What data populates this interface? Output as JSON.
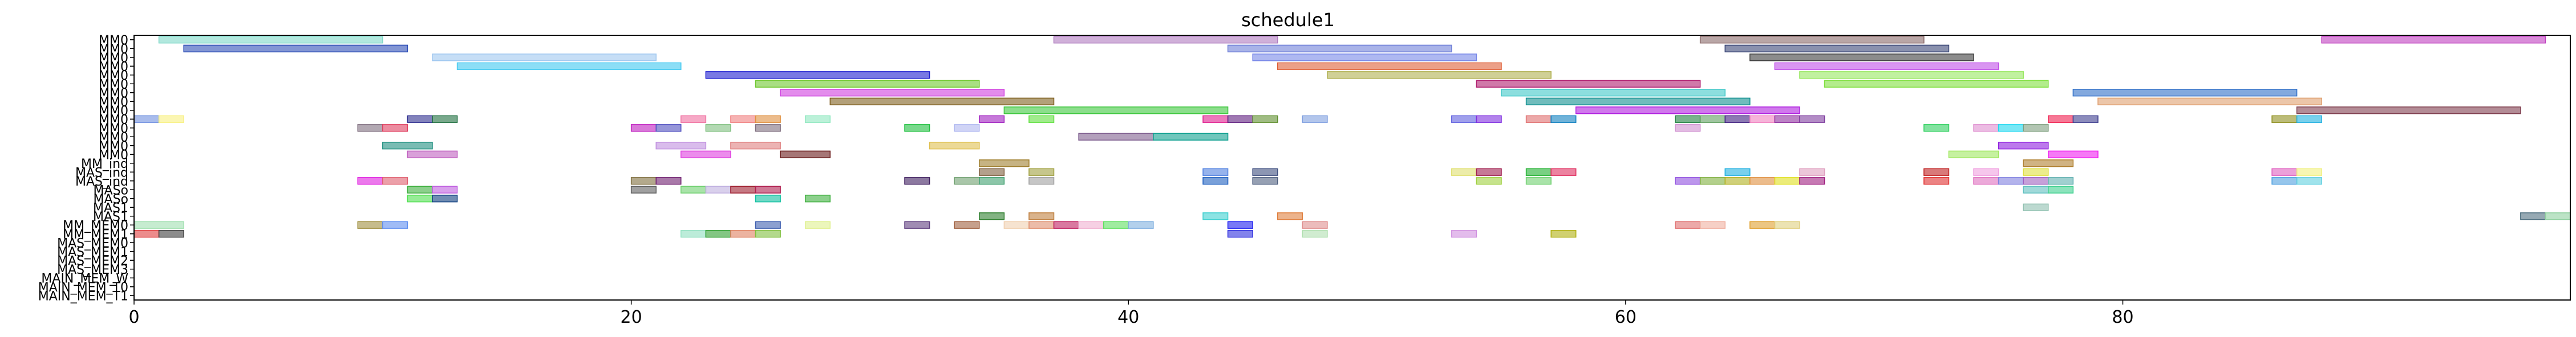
{
  "chart_data": {
    "type": "gantt",
    "title": "schedule1",
    "xlabel": "",
    "ylabel": "",
    "xlim": [
      0,
      98
    ],
    "xticks": [
      0,
      20,
      40,
      60,
      80
    ],
    "grid": false,
    "legend": "none",
    "rows": [
      "MM0",
      "MM0",
      "MM0",
      "MM0",
      "MM0",
      "MM0",
      "MM0",
      "MM0",
      "MM0",
      "MM0",
      "MM0",
      "MM0",
      "MM0",
      "MM0",
      "MM_ind",
      "MAS_ind",
      "MAS_ind",
      "MASo",
      "MASo",
      "MAS1",
      "MAS1",
      "MM_MEM0",
      "MM_MEM1",
      "MAS_MEM0",
      "MAS_MEM1",
      "MAS_MEM2",
      "MAS_MEM3",
      "MAIN_MEM_W",
      "MAIN_MEM_T0",
      "MAIN_MEM_T1"
    ],
    "bars": [
      {
        "row": 0,
        "start": 1,
        "end": 10,
        "color": "#7fd8c8"
      },
      {
        "row": 0,
        "start": 37,
        "end": 46,
        "color": "#b07cc0"
      },
      {
        "row": 0,
        "start": 63,
        "end": 72,
        "color": "#8b6a6a"
      },
      {
        "row": 0,
        "start": 88,
        "end": 97,
        "color": "#c040c0"
      },
      {
        "row": 1,
        "start": 2,
        "end": 11,
        "color": "#3050b8"
      },
      {
        "row": 1,
        "start": 44,
        "end": 53,
        "color": "#7080d8"
      },
      {
        "row": 1,
        "start": 64,
        "end": 73,
        "color": "#3c4878"
      },
      {
        "row": 2,
        "start": 12,
        "end": 21,
        "color": "#a0c8f0"
      },
      {
        "row": 2,
        "start": 45,
        "end": 54,
        "color": "#7888e8"
      },
      {
        "row": 2,
        "start": 65,
        "end": 74,
        "color": "#404040"
      },
      {
        "row": 3,
        "start": 13,
        "end": 22,
        "color": "#40c8f0"
      },
      {
        "row": 3,
        "start": 46,
        "end": 55,
        "color": "#e06038"
      },
      {
        "row": 3,
        "start": 66,
        "end": 75,
        "color": "#c050e8"
      },
      {
        "row": 4,
        "start": 23,
        "end": 32,
        "color": "#2020d0"
      },
      {
        "row": 4,
        "start": 48,
        "end": 57,
        "color": "#b0b050"
      },
      {
        "row": 4,
        "start": 67,
        "end": 76,
        "color": "#98e860"
      },
      {
        "row": 5,
        "start": 25,
        "end": 34,
        "color": "#70c830"
      },
      {
        "row": 5,
        "start": 54,
        "end": 63,
        "color": "#b02070"
      },
      {
        "row": 5,
        "start": 68,
        "end": 77,
        "color": "#80e040"
      },
      {
        "row": 6,
        "start": 26,
        "end": 35,
        "color": "#d040e0"
      },
      {
        "row": 6,
        "start": 55,
        "end": 64,
        "color": "#40c8c8"
      },
      {
        "row": 6,
        "start": 78,
        "end": 87,
        "color": "#3070c8"
      },
      {
        "row": 7,
        "start": 28,
        "end": 37,
        "color": "#806020"
      },
      {
        "row": 7,
        "start": 56,
        "end": 65,
        "color": "#109090"
      },
      {
        "row": 7,
        "start": 79,
        "end": 88,
        "color": "#e0a070"
      },
      {
        "row": 8,
        "start": 35,
        "end": 44,
        "color": "#40c840"
      },
      {
        "row": 8,
        "start": 58,
        "end": 67,
        "color": "#b020e0"
      },
      {
        "row": 8,
        "start": 87,
        "end": 96,
        "color": "#804050"
      },
      {
        "row": 9,
        "start": 0,
        "end": 1,
        "color": "#7090e0"
      },
      {
        "row": 9,
        "start": 1,
        "end": 2,
        "color": "#f8f080"
      },
      {
        "row": 9,
        "start": 11,
        "end": 12,
        "color": "#303090"
      },
      {
        "row": 9,
        "start": 12,
        "end": 13,
        "color": "#207040"
      },
      {
        "row": 9,
        "start": 22,
        "end": 23,
        "color": "#f070a0"
      },
      {
        "row": 9,
        "start": 24,
        "end": 25,
        "color": "#f08080"
      },
      {
        "row": 9,
        "start": 25,
        "end": 26,
        "color": "#e09040"
      },
      {
        "row": 9,
        "start": 27,
        "end": 28,
        "color": "#90e8c0"
      },
      {
        "row": 9,
        "start": 34,
        "end": 35,
        "color": "#a020c0"
      },
      {
        "row": 9,
        "start": 36,
        "end": 37,
        "color": "#60e040"
      },
      {
        "row": 9,
        "start": 43,
        "end": 44,
        "color": "#e02090"
      },
      {
        "row": 9,
        "start": 44,
        "end": 45,
        "color": "#602080"
      },
      {
        "row": 9,
        "start": 45,
        "end": 46,
        "color": "#609030"
      },
      {
        "row": 9,
        "start": 47,
        "end": 48,
        "color": "#80a0e0"
      },
      {
        "row": 9,
        "start": 53,
        "end": 54,
        "color": "#6060e0"
      },
      {
        "row": 9,
        "start": 54,
        "end": 55,
        "color": "#8030e0"
      },
      {
        "row": 9,
        "start": 56,
        "end": 57,
        "color": "#e07070"
      },
      {
        "row": 9,
        "start": 57,
        "end": 58,
        "color": "#1080c0"
      },
      {
        "row": 9,
        "start": 62,
        "end": 63,
        "color": "#208040"
      },
      {
        "row": 9,
        "start": 63,
        "end": 64,
        "color": "#60a060"
      },
      {
        "row": 9,
        "start": 64,
        "end": 65,
        "color": "#402080"
      },
      {
        "row": 9,
        "start": 65,
        "end": 66,
        "color": "#f080c0"
      },
      {
        "row": 9,
        "start": 66,
        "end": 67,
        "color": "#9030a0"
      },
      {
        "row": 9,
        "start": 67,
        "end": 68,
        "color": "#8040a0"
      },
      {
        "row": 9,
        "start": 77,
        "end": 78,
        "color": "#f02050"
      },
      {
        "row": 9,
        "start": 78,
        "end": 79,
        "color": "#404090"
      },
      {
        "row": 9,
        "start": 86,
        "end": 87,
        "color": "#909020"
      },
      {
        "row": 9,
        "start": 87,
        "end": 88,
        "color": "#20b0e0"
      },
      {
        "row": 10,
        "start": 9,
        "end": 10,
        "color": "#807080"
      },
      {
        "row": 10,
        "start": 10,
        "end": 11,
        "color": "#e04060"
      },
      {
        "row": 10,
        "start": 20,
        "end": 21,
        "color": "#c020c0"
      },
      {
        "row": 10,
        "start": 21,
        "end": 22,
        "color": "#5050c0"
      },
      {
        "row": 10,
        "start": 23,
        "end": 24,
        "color": "#80c080"
      },
      {
        "row": 10,
        "start": 25,
        "end": 26,
        "color": "#807080"
      },
      {
        "row": 10,
        "start": 31,
        "end": 32,
        "color": "#20c040"
      },
      {
        "row": 10,
        "start": 33,
        "end": 34,
        "color": "#b0b8f0"
      },
      {
        "row": 10,
        "start": 62,
        "end": 63,
        "color": "#d090d0"
      },
      {
        "row": 10,
        "start": 72,
        "end": 73,
        "color": "#30d060"
      },
      {
        "row": 10,
        "start": 74,
        "end": 75,
        "color": "#e090d0"
      },
      {
        "row": 10,
        "start": 75,
        "end": 76,
        "color": "#20d8f0"
      },
      {
        "row": 10,
        "start": 76,
        "end": 77,
        "color": "#80a080"
      },
      {
        "row": 11,
        "start": 38,
        "end": 41,
        "color": "#806090"
      },
      {
        "row": 11,
        "start": 41,
        "end": 44,
        "color": "#10a090"
      },
      {
        "row": 12,
        "start": 10,
        "end": 12,
        "color": "#209080"
      },
      {
        "row": 12,
        "start": 21,
        "end": 23,
        "color": "#c090e0"
      },
      {
        "row": 12,
        "start": 24,
        "end": 26,
        "color": "#e08080"
      },
      {
        "row": 12,
        "start": 32,
        "end": 34,
        "color": "#e0c050"
      },
      {
        "row": 12,
        "start": 75,
        "end": 77,
        "color": "#9020e0"
      },
      {
        "row": 13,
        "start": 11,
        "end": 13,
        "color": "#c060c0"
      },
      {
        "row": 13,
        "start": 22,
        "end": 24,
        "color": "#e040e0"
      },
      {
        "row": 13,
        "start": 26,
        "end": 28,
        "color": "#6a1a1a"
      },
      {
        "row": 13,
        "start": 73,
        "end": 75,
        "color": "#a0e860"
      },
      {
        "row": 13,
        "start": 77,
        "end": 79,
        "color": "#f020f0"
      },
      {
        "row": 14,
        "start": 34,
        "end": 36,
        "color": "#a08030"
      },
      {
        "row": 14,
        "start": 76,
        "end": 78,
        "color": "#b08030"
      },
      {
        "row": 15,
        "start": 34,
        "end": 35,
        "color": "#806040"
      },
      {
        "row": 15,
        "start": 36,
        "end": 37,
        "color": "#a0a040"
      },
      {
        "row": 15,
        "start": 43,
        "end": 44,
        "color": "#5080e0"
      },
      {
        "row": 15,
        "start": 45,
        "end": 46,
        "color": "#405080"
      },
      {
        "row": 15,
        "start": 53,
        "end": 54,
        "color": "#e0e070"
      },
      {
        "row": 15,
        "start": 54,
        "end": 55,
        "color": "#a02050"
      },
      {
        "row": 15,
        "start": 56,
        "end": 57,
        "color": "#20b030"
      },
      {
        "row": 15,
        "start": 57,
        "end": 58,
        "color": "#e03060"
      },
      {
        "row": 15,
        "start": 64,
        "end": 65,
        "color": "#20b0e0"
      },
      {
        "row": 15,
        "start": 67,
        "end": 68,
        "color": "#e0a0c0"
      },
      {
        "row": 15,
        "start": 72,
        "end": 73,
        "color": "#c02020"
      },
      {
        "row": 15,
        "start": 74,
        "end": 75,
        "color": "#f0a0e0"
      },
      {
        "row": 15,
        "start": 76,
        "end": 77,
        "color": "#e0e040"
      },
      {
        "row": 15,
        "start": 86,
        "end": 87,
        "color": "#e060c0"
      },
      {
        "row": 15,
        "start": 87,
        "end": 88,
        "color": "#f0f080"
      },
      {
        "row": 16,
        "start": 9,
        "end": 10,
        "color": "#e020e0"
      },
      {
        "row": 16,
        "start": 10,
        "end": 11,
        "color": "#e06070"
      },
      {
        "row": 16,
        "start": 20,
        "end": 21,
        "color": "#807040"
      },
      {
        "row": 16,
        "start": 21,
        "end": 22,
        "color": "#702070"
      },
      {
        "row": 16,
        "start": 31,
        "end": 32,
        "color": "#402060"
      },
      {
        "row": 16,
        "start": 33,
        "end": 34,
        "color": "#70a070"
      },
      {
        "row": 16,
        "start": 34,
        "end": 35,
        "color": "#40a070"
      },
      {
        "row": 16,
        "start": 36,
        "end": 37,
        "color": "#a0a0a0"
      },
      {
        "row": 16,
        "start": 43,
        "end": 44,
        "color": "#2060c0"
      },
      {
        "row": 16,
        "start": 45,
        "end": 46,
        "color": "#506080"
      },
      {
        "row": 16,
        "start": 54,
        "end": 55,
        "color": "#a0d040"
      },
      {
        "row": 16,
        "start": 56,
        "end": 57,
        "color": "#70d070"
      },
      {
        "row": 16,
        "start": 62,
        "end": 63,
        "color": "#9050e0"
      },
      {
        "row": 16,
        "start": 63,
        "end": 64,
        "color": "#80b040"
      },
      {
        "row": 16,
        "start": 64,
        "end": 65,
        "color": "#b0b020"
      },
      {
        "row": 16,
        "start": 65,
        "end": 66,
        "color": "#e09040"
      },
      {
        "row": 16,
        "start": 66,
        "end": 67,
        "color": "#e0e020"
      },
      {
        "row": 16,
        "start": 67,
        "end": 68,
        "color": "#a02080"
      },
      {
        "row": 16,
        "start": 72,
        "end": 73,
        "color": "#e03030"
      },
      {
        "row": 16,
        "start": 74,
        "end": 75,
        "color": "#e070c0"
      },
      {
        "row": 16,
        "start": 75,
        "end": 76,
        "color": "#8080e0"
      },
      {
        "row": 16,
        "start": 76,
        "end": 77,
        "color": "#a060c0"
      },
      {
        "row": 16,
        "start": 77,
        "end": 78,
        "color": "#60b0b0"
      },
      {
        "row": 16,
        "start": 86,
        "end": 87,
        "color": "#50a0e0"
      },
      {
        "row": 16,
        "start": 87,
        "end": 88,
        "color": "#60d0e0"
      },
      {
        "row": 17,
        "start": 11,
        "end": 12,
        "color": "#40b040"
      },
      {
        "row": 17,
        "start": 12,
        "end": 13,
        "color": "#c060e0"
      },
      {
        "row": 17,
        "start": 20,
        "end": 21,
        "color": "#606060"
      },
      {
        "row": 17,
        "start": 22,
        "end": 23,
        "color": "#70d070"
      },
      {
        "row": 17,
        "start": 23,
        "end": 24,
        "color": "#c0b0e0"
      },
      {
        "row": 17,
        "start": 24,
        "end": 25,
        "color": "#a02030"
      },
      {
        "row": 17,
        "start": 25,
        "end": 26,
        "color": "#b02050"
      },
      {
        "row": 17,
        "start": 76,
        "end": 77,
        "color": "#60c0c0"
      },
      {
        "row": 17,
        "start": 77,
        "end": 78,
        "color": "#40d090"
      },
      {
        "row": 18,
        "start": 11,
        "end": 12,
        "color": "#50e050"
      },
      {
        "row": 18,
        "start": 12,
        "end": 13,
        "color": "#104080"
      },
      {
        "row": 18,
        "start": 25,
        "end": 26,
        "color": "#10c0a0"
      },
      {
        "row": 18,
        "start": 27,
        "end": 28,
        "color": "#40b040"
      },
      {
        "row": 19,
        "start": 76,
        "end": 77,
        "color": "#90c0b0"
      },
      {
        "row": 20,
        "start": 34,
        "end": 35,
        "color": "#308030"
      },
      {
        "row": 20,
        "start": 36,
        "end": 37,
        "color": "#c08040"
      },
      {
        "row": 20,
        "start": 43,
        "end": 44,
        "color": "#40d0d0"
      },
      {
        "row": 20,
        "start": 46,
        "end": 47,
        "color": "#e08040"
      },
      {
        "row": 20,
        "start": 96,
        "end": 97,
        "color": "#507080"
      },
      {
        "row": 20,
        "start": 97,
        "end": 98,
        "color": "#90d0a0"
      },
      {
        "row": 21,
        "start": 0,
        "end": 2,
        "color": "#a0e0b0"
      },
      {
        "row": 21,
        "start": 9,
        "end": 10,
        "color": "#a09040"
      },
      {
        "row": 21,
        "start": 10,
        "end": 11,
        "color": "#6090f0"
      },
      {
        "row": 21,
        "start": 25,
        "end": 26,
        "color": "#4060b0"
      },
      {
        "row": 21,
        "start": 27,
        "end": 28,
        "color": "#e0f090"
      },
      {
        "row": 21,
        "start": 31,
        "end": 32,
        "color": "#604080"
      },
      {
        "row": 21,
        "start": 33,
        "end": 34,
        "color": "#a06040"
      },
      {
        "row": 21,
        "start": 35,
        "end": 36,
        "color": "#f0d0b0"
      },
      {
        "row": 21,
        "start": 36,
        "end": 37,
        "color": "#e09070"
      },
      {
        "row": 21,
        "start": 37,
        "end": 38,
        "color": "#c02060"
      },
      {
        "row": 21,
        "start": 38,
        "end": 39,
        "color": "#f0b0d0"
      },
      {
        "row": 21,
        "start": 39,
        "end": 40,
        "color": "#60e060"
      },
      {
        "row": 21,
        "start": 40,
        "end": 41,
        "color": "#80b0e0"
      },
      {
        "row": 21,
        "start": 44,
        "end": 45,
        "color": "#2020f0"
      },
      {
        "row": 21,
        "start": 47,
        "end": 48,
        "color": "#e09090"
      },
      {
        "row": 21,
        "start": 62,
        "end": 63,
        "color": "#e07070"
      },
      {
        "row": 21,
        "start": 63,
        "end": 64,
        "color": "#f0b0a0"
      },
      {
        "row": 21,
        "start": 65,
        "end": 66,
        "color": "#e0a030"
      },
      {
        "row": 21,
        "start": 66,
        "end": 67,
        "color": "#e0d080"
      },
      {
        "row": 22,
        "start": 0,
        "end": 1,
        "color": "#e04040"
      },
      {
        "row": 22,
        "start": 1,
        "end": 2,
        "color": "#404040"
      },
      {
        "row": 22,
        "start": 22,
        "end": 23,
        "color": "#90e0c0"
      },
      {
        "row": 22,
        "start": 23,
        "end": 24,
        "color": "#30a030"
      },
      {
        "row": 22,
        "start": 24,
        "end": 25,
        "color": "#e08060"
      },
      {
        "row": 22,
        "start": 25,
        "end": 26,
        "color": "#80c040"
      },
      {
        "row": 22,
        "start": 44,
        "end": 45,
        "color": "#3030e0"
      },
      {
        "row": 22,
        "start": 47,
        "end": 48,
        "color": "#b0e0b0"
      },
      {
        "row": 22,
        "start": 53,
        "end": 54,
        "color": "#d090e0"
      },
      {
        "row": 22,
        "start": 57,
        "end": 58,
        "color": "#b0b010"
      }
    ],
    "note_rows": "duplicate labels drawn as in original"
  }
}
